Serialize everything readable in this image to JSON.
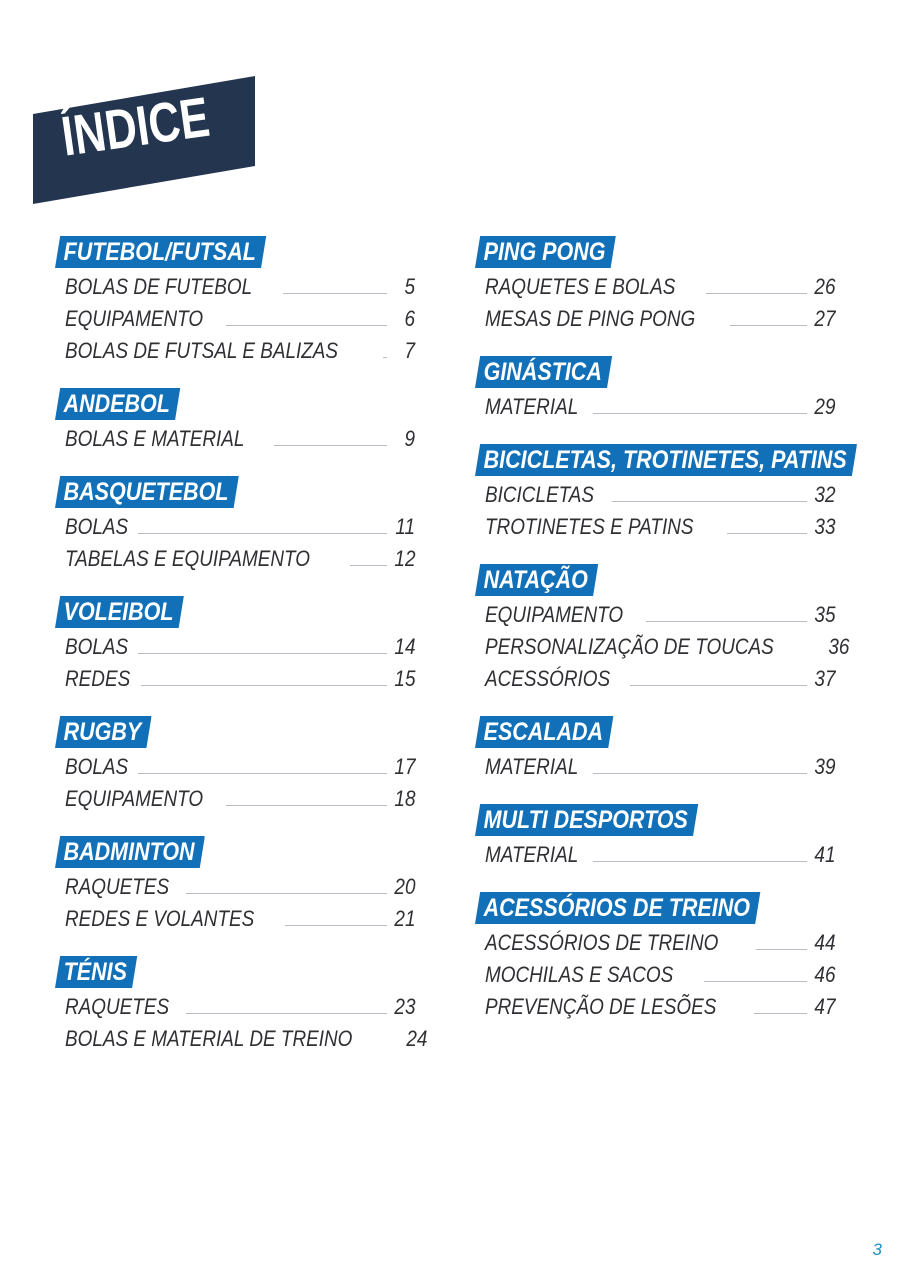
{
  "page": {
    "title": "ÍNDICE",
    "page_number": "3",
    "accent_color": "#1170b8",
    "banner_color": "#24354f"
  },
  "left_column": [
    {
      "category": "FUTEBOL/FUTSAL",
      "items": [
        {
          "label": "BOLAS DE FUTEBOL",
          "page": "5"
        },
        {
          "label": "EQUIPAMENTO",
          "page": "6"
        },
        {
          "label": "BOLAS DE FUTSAL E BALIZAS",
          "page": "7"
        }
      ]
    },
    {
      "category": "ANDEBOL",
      "items": [
        {
          "label": "BOLAS E MATERIAL",
          "page": "9"
        }
      ]
    },
    {
      "category": "BASQUETEBOL",
      "items": [
        {
          "label": "BOLAS",
          "page": "11"
        },
        {
          "label": "TABELAS E EQUIPAMENTO",
          "page": "12"
        }
      ]
    },
    {
      "category": "VOLEIBOL",
      "items": [
        {
          "label": "BOLAS",
          "page": "14"
        },
        {
          "label": "REDES",
          "page": "15"
        }
      ]
    },
    {
      "category": "RUGBY",
      "items": [
        {
          "label": "BOLAS",
          "page": "17"
        },
        {
          "label": "EQUIPAMENTO",
          "page": "18"
        }
      ]
    },
    {
      "category": "BADMINTON",
      "items": [
        {
          "label": "RAQUETES",
          "page": "20"
        },
        {
          "label": "REDES E VOLANTES",
          "page": "21"
        }
      ]
    },
    {
      "category": "TÉNIS",
      "items": [
        {
          "label": "RAQUETES",
          "page": "23"
        },
        {
          "label": "BOLAS E MATERIAL DE TREINO",
          "page": "24"
        }
      ]
    }
  ],
  "right_column": [
    {
      "category": "PING PONG",
      "items": [
        {
          "label": "RAQUETES E BOLAS",
          "page": "26"
        },
        {
          "label": "MESAS DE PING PONG",
          "page": "27"
        }
      ]
    },
    {
      "category": "GINÁSTICA",
      "items": [
        {
          "label": "MATERIAL",
          "page": "29"
        }
      ]
    },
    {
      "category": "BICICLETAS, TROTINETES, PATINS",
      "items": [
        {
          "label": "BICICLETAS",
          "page": "32"
        },
        {
          "label": "TROTINETES E PATINS",
          "page": "33"
        }
      ]
    },
    {
      "category": "NATAÇÃO",
      "items": [
        {
          "label": "EQUIPAMENTO",
          "page": "35"
        },
        {
          "label": "PERSONALIZAÇÃO DE TOUCAS",
          "page": "36"
        },
        {
          "label": "ACESSÓRIOS",
          "page": "37"
        }
      ]
    },
    {
      "category": "ESCALADA",
      "items": [
        {
          "label": "MATERIAL",
          "page": "39"
        }
      ]
    },
    {
      "category": "MULTI DESPORTOS",
      "items": [
        {
          "label": "MATERIAL",
          "page": "41"
        }
      ]
    },
    {
      "category": "ACESSÓRIOS DE TREINO",
      "items": [
        {
          "label": "ACESSÓRIOS DE TREINO",
          "page": "44"
        },
        {
          "label": "MOCHILAS E SACOS",
          "page": "46"
        },
        {
          "label": "PREVENÇÃO DE LESÕES",
          "page": "47"
        }
      ]
    }
  ]
}
